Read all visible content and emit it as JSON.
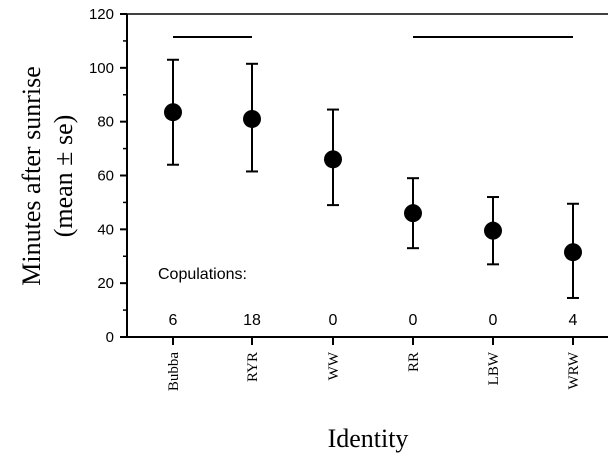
{
  "chart_data": {
    "type": "scatter",
    "subtype": "errorbar",
    "categories": [
      "Bubba",
      "RYR",
      "WW",
      "RR",
      "LBW",
      "WRW"
    ],
    "means": [
      83.5,
      81,
      66,
      46,
      39.5,
      31.5
    ],
    "error_low": [
      64,
      61.5,
      49,
      33,
      27,
      14.5
    ],
    "error_high": [
      103,
      101.5,
      84.5,
      59,
      52,
      49.5
    ],
    "ylim": [
      0,
      120
    ],
    "yticks": [
      0,
      20,
      40,
      60,
      80,
      100,
      120
    ],
    "ylabel_line1": "Minutes after sunrise",
    "ylabel_line2": "(mean ± se)",
    "xlabel": "Identity",
    "copulations_label": "Copulations:",
    "copulations": [
      "6",
      "18",
      "0",
      "0",
      "0",
      "4"
    ],
    "groups": [
      {
        "from": "Bubba",
        "to": "RYR"
      },
      {
        "from": "RR",
        "to": "WRW"
      }
    ],
    "marker_color": "#000000"
  }
}
